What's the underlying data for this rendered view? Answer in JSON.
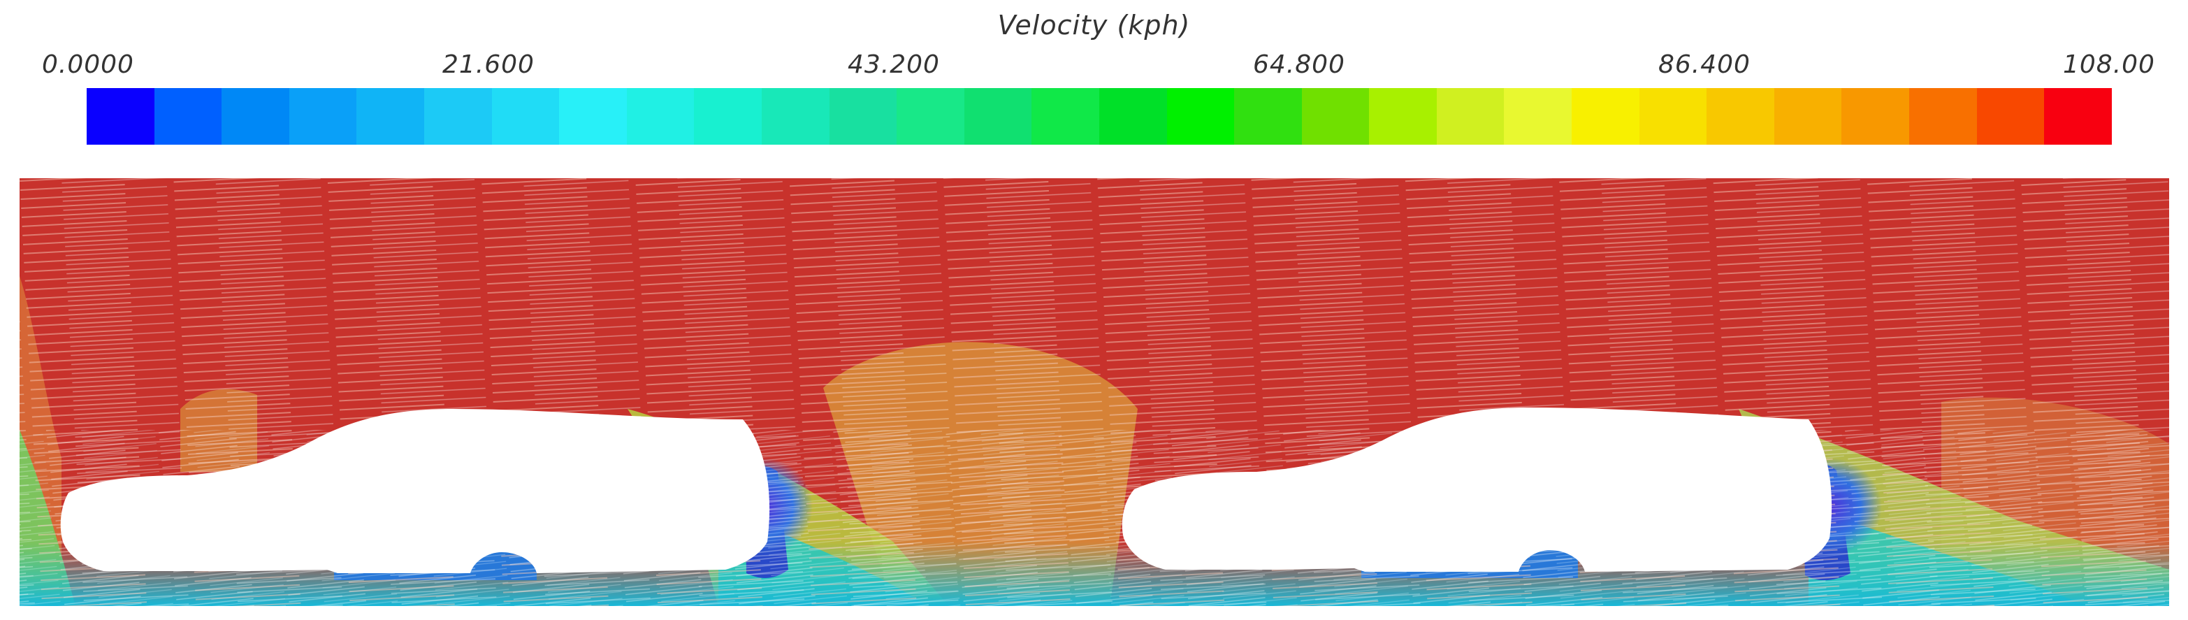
{
  "colorbar": {
    "title": "Velocity (kph)",
    "ticks": [
      "0.0000",
      "21.600",
      "43.200",
      "64.800",
      "86.400",
      "108.00"
    ],
    "range": [
      0,
      108
    ],
    "unit": "kph",
    "colors": [
      "#0a00ff",
      "#0060ff",
      "#0088f6",
      "#0aa0f8",
      "#10b4f6",
      "#1ccaf6",
      "#20dcf6",
      "#28f0f8",
      "#20f0e4",
      "#18f0d0",
      "#18e8b8",
      "#18e0a0",
      "#18e888",
      "#10e070",
      "#10e848",
      "#00e028",
      "#00f000",
      "#30e010",
      "#70e000",
      "#a8f000",
      "#d0f020",
      "#e8f830",
      "#f8f000",
      "#f8e000",
      "#f8c800",
      "#f8b000",
      "#f89800",
      "#f87000",
      "#f84800",
      "#f80010"
    ]
  },
  "scene": {
    "free_stream_color": "#c8322c",
    "vehicle_color": "#ffffff",
    "vehicle_count": 2
  }
}
